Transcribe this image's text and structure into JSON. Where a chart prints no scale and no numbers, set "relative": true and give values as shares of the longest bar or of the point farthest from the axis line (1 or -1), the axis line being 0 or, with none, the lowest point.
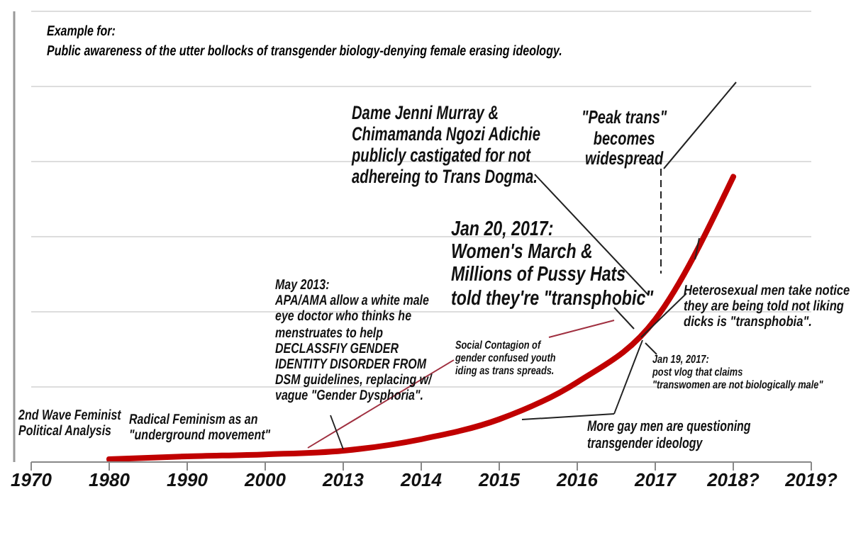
{
  "chart_data": {
    "type": "line",
    "title": "Example for:",
    "subtitle": "Public awareness of the utter bollocks of transgender biology-denying female erasing ideology.",
    "categories": [
      "1970",
      "1980",
      "1990",
      "2000",
      "2013",
      "2014",
      "2015",
      "2016",
      "2017",
      "2018?",
      "2019?"
    ],
    "series": [
      {
        "color": "#c00000",
        "values": [
          null,
          0.01,
          0.02,
          0.027,
          0.04,
          0.08,
          0.15,
          0.28,
          0.5,
          1,
          null
        ]
      }
    ],
    "relative": true,
    "grid": "y",
    "annotations": [
      "2nd Wave Feminist\nPolitical Analysis",
      "Radical Feminism as an\n\"underground movement\"",
      "May 2013:\nAPA/AMA allow a white male\neye doctor who thinks he\nmenstruates to help\nDECLASSFIY GENDER\nIDENTITY DISORDER FROM\nDSM guidelines, replacing w/\nvague \"Gender Dysphoria\".",
      "Social Contagion of\ngender confused youth\niding as trans spreads.",
      "Jan 20, 2017:\nWomen's March &\nMillions of Pussy Hats\ntold they're \"transphobic\"",
      "Dame Jenni Murray &\nChimamanda Ngozi Adichie\npublicly castigated for not\nadhereing to Trans Dogma.",
      "\"Peak trans\"\nbecomes\nwidespread",
      "Heterosexual men take notice\nthey are being told not liking\ndicks is \"transphobia\".",
      "Jan 19, 2017:\npost vlog that claims\n\"transwomen are not biologically male\"",
      "More gay men are questioning\ntransgender ideology"
    ]
  }
}
